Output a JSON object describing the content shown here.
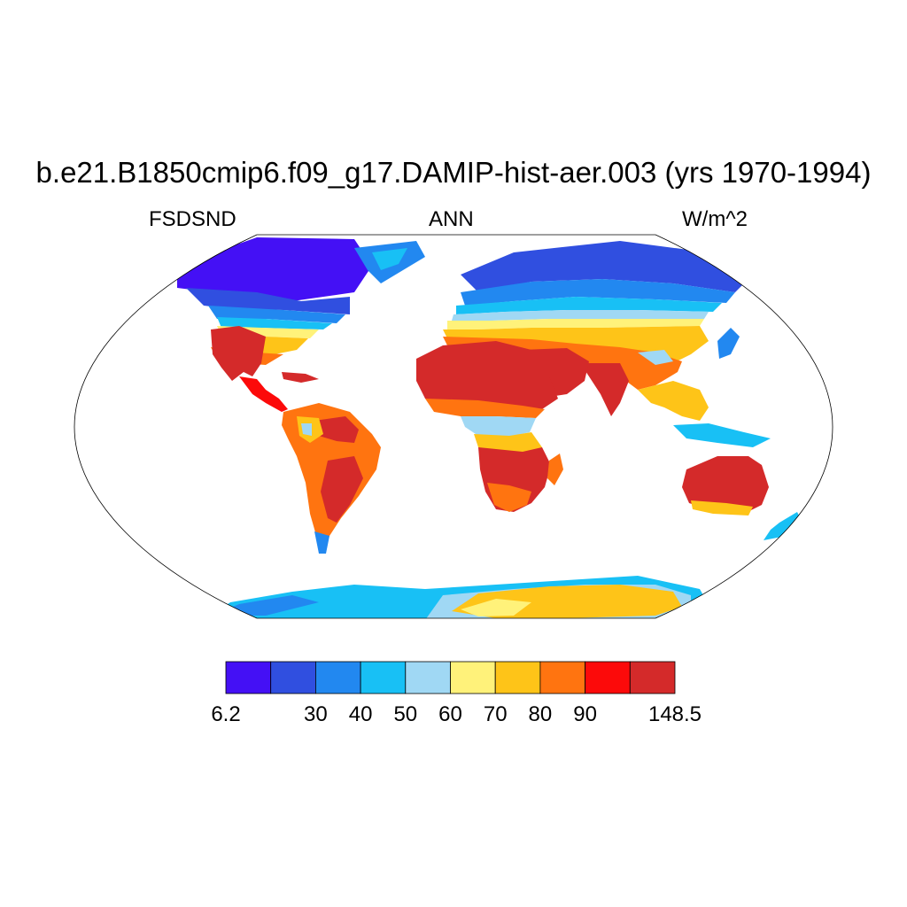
{
  "title": "b.e21.B1850cmip6.f09_g17.DAMIP-hist-aer.003 (yrs 1970-1994)",
  "left_string": "FSDSND",
  "center_string": "ANN",
  "right_string": "W/m^2",
  "colorbar": {
    "colors": [
      "#4410f5",
      "#304fe0",
      "#2288f0",
      "#18c0f5",
      "#a0d8f4",
      "#fff27a",
      "#fec418",
      "#ff7410",
      "#fc0a0a",
      "#d42a2a"
    ],
    "labels": [
      "6.2",
      "",
      "30",
      "40",
      "50",
      "60",
      "70",
      "80",
      "90",
      "",
      "148.5"
    ]
  },
  "palette": {
    "ice_cold": "#4410f5",
    "cold": "#304fe0",
    "cool": "#2288f0",
    "mild": "#18c0f5",
    "light": "#a0d8f4",
    "pale": "#fff27a",
    "warm": "#fec418",
    "hot": "#ff7410",
    "very_hot": "#fc0a0a",
    "max": "#d42a2a"
  }
}
